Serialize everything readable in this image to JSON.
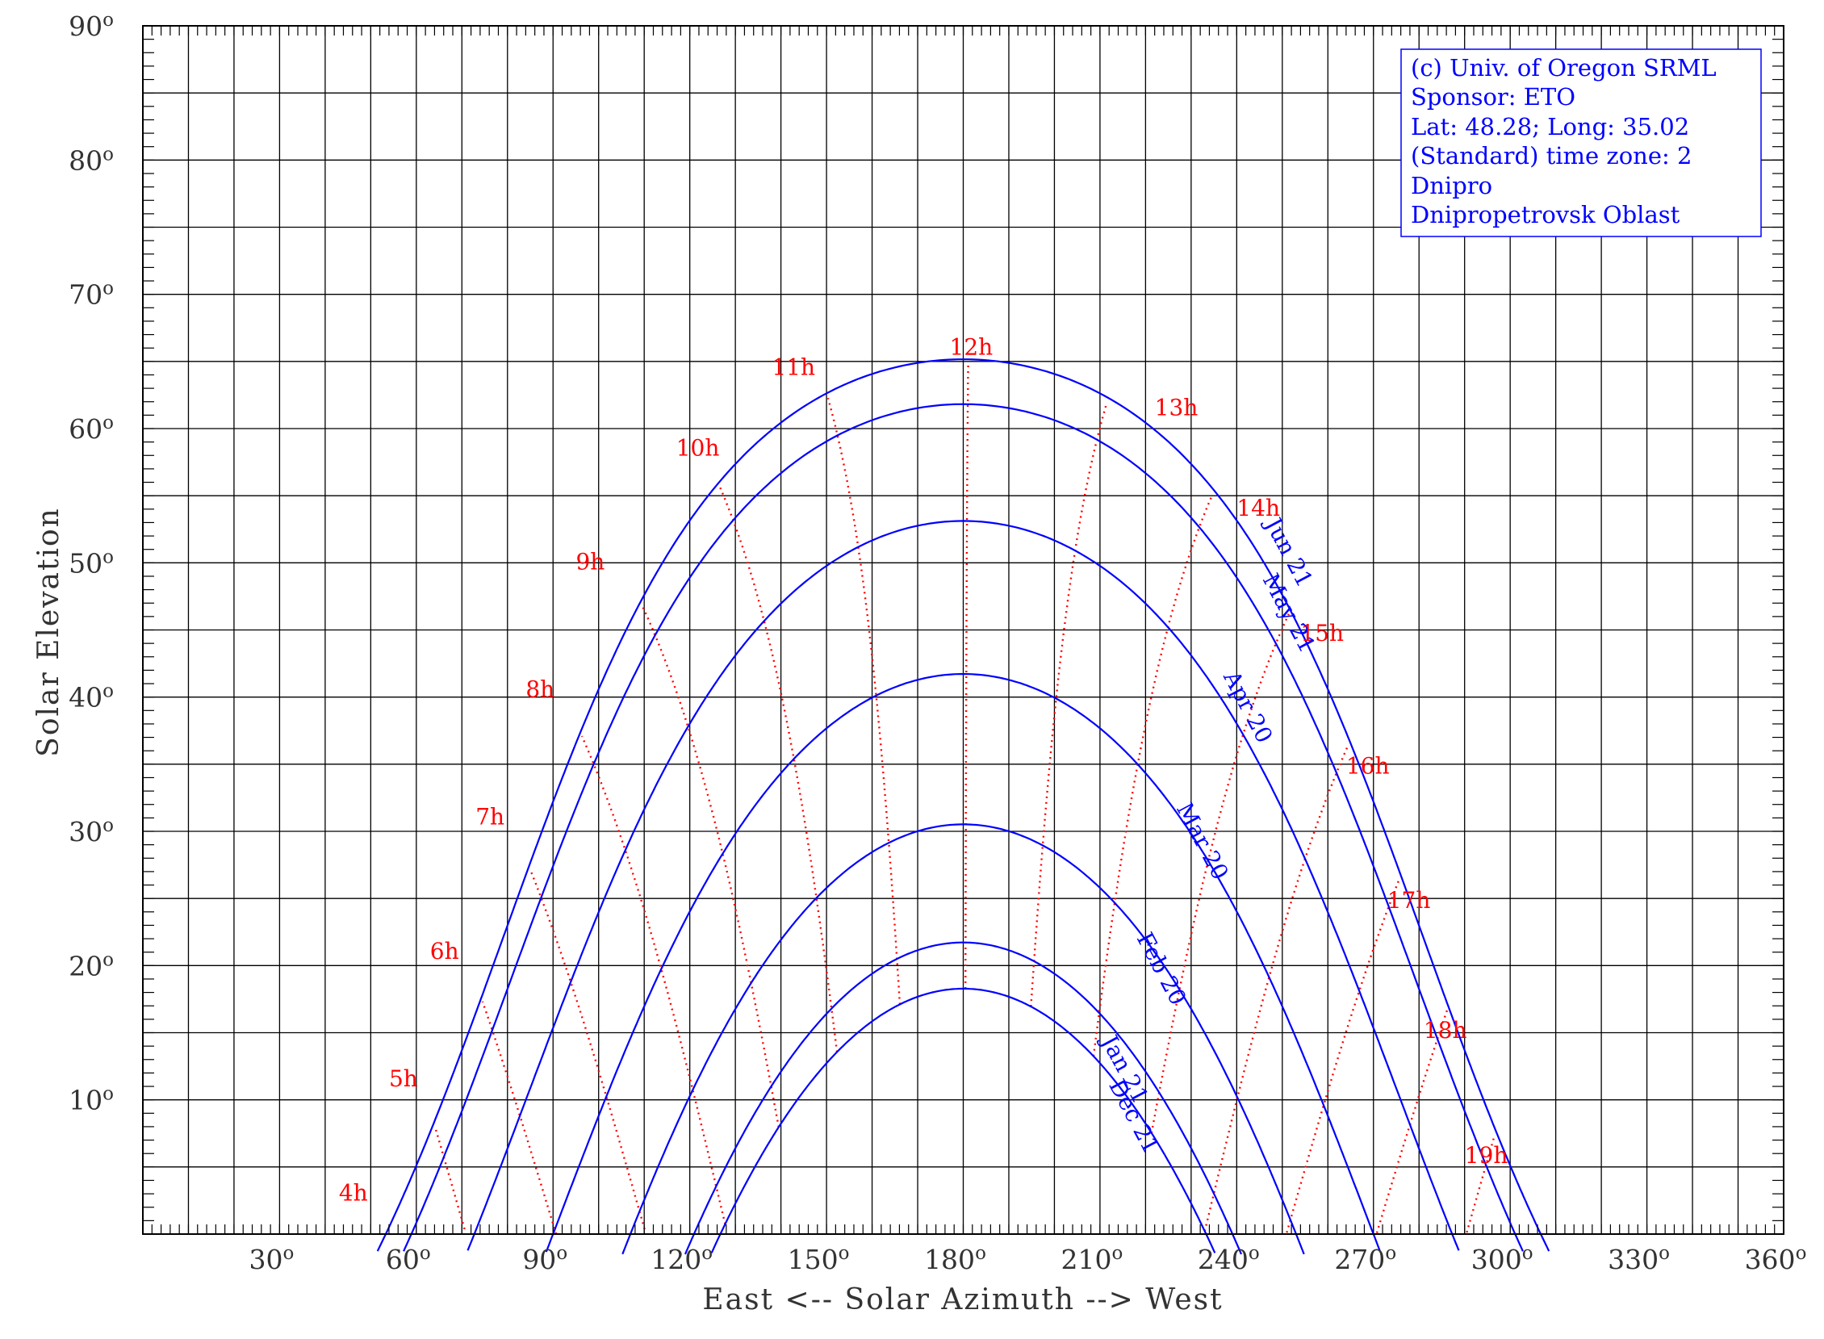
{
  "chart_data": {
    "type": "line",
    "title": "",
    "xlabel": "East <-- Solar Azimuth --> West",
    "ylabel": "Solar Elevation",
    "xlim": [
      0,
      360
    ],
    "ylim": [
      0,
      90
    ],
    "grid": true,
    "x_ticks": [
      {
        "value": 30,
        "label": "30"
      },
      {
        "value": 60,
        "label": "60"
      },
      {
        "value": 90,
        "label": "90"
      },
      {
        "value": 120,
        "label": "120"
      },
      {
        "value": 150,
        "label": "150"
      },
      {
        "value": 180,
        "label": "180"
      },
      {
        "value": 210,
        "label": "210"
      },
      {
        "value": 240,
        "label": "240"
      },
      {
        "value": 270,
        "label": "270"
      },
      {
        "value": 300,
        "label": "300"
      },
      {
        "value": 330,
        "label": "330"
      },
      {
        "value": 360,
        "label": "360"
      }
    ],
    "y_ticks": [
      {
        "value": 10,
        "label": "10"
      },
      {
        "value": 20,
        "label": "20"
      },
      {
        "value": 30,
        "label": "30"
      },
      {
        "value": 40,
        "label": "40"
      },
      {
        "value": 50,
        "label": "50"
      },
      {
        "value": 60,
        "label": "60"
      },
      {
        "value": 70,
        "label": "70"
      },
      {
        "value": 80,
        "label": "80"
      },
      {
        "value": 90,
        "label": "90"
      }
    ],
    "degree_symbol": "o",
    "latitude": 48.28,
    "series": [
      {
        "name": "Jun 21",
        "declination": 23.44,
        "label_az": 250,
        "label_el": 50.5
      },
      {
        "name": "May 21",
        "declination": 20.1,
        "label_az": 250,
        "label_el": 46.0
      },
      {
        "name": "Apr 20",
        "declination": 11.4,
        "label_az": 241,
        "label_el": 39.0
      },
      {
        "name": "Mar 20",
        "declination": 0.0,
        "label_az": 231,
        "label_el": 29.0
      },
      {
        "name": "Feb 20",
        "declination": -11.2,
        "label_az": 222,
        "label_el": 19.5
      },
      {
        "name": "Jan 21",
        "declination": -20.0,
        "label_az": 214,
        "label_el": 12.0
      },
      {
        "name": "Dec 21",
        "declination": -23.44,
        "label_az": 216,
        "label_el": 8.5
      }
    ],
    "hour_lines": [
      {
        "label": "4h",
        "hour": 4,
        "label_az": 43,
        "label_el": 2.5
      },
      {
        "label": "5h",
        "hour": 5,
        "label_az": 54,
        "label_el": 11.0
      },
      {
        "label": "6h",
        "hour": 6,
        "label_az": 63,
        "label_el": 20.5
      },
      {
        "label": "7h",
        "hour": 7,
        "label_az": 73,
        "label_el": 30.5
      },
      {
        "label": "8h",
        "hour": 8,
        "label_az": 84,
        "label_el": 40.0
      },
      {
        "label": "9h",
        "hour": 9,
        "label_az": 95,
        "label_el": 49.5
      },
      {
        "label": "10h",
        "hour": 10,
        "label_az": 117,
        "label_el": 58.0
      },
      {
        "label": "11h",
        "hour": 11,
        "label_az": 138,
        "label_el": 64.0
      },
      {
        "label": "12h",
        "hour": 12,
        "label_az": 177,
        "label_el": 65.5
      },
      {
        "label": "13h",
        "hour": 13,
        "label_az": 222,
        "label_el": 61.0
      },
      {
        "label": "14h",
        "hour": 14,
        "label_az": 240,
        "label_el": 53.5
      },
      {
        "label": "15h",
        "hour": 15,
        "label_az": 254,
        "label_el": 44.2
      },
      {
        "label": "16h",
        "hour": 16,
        "label_az": 264,
        "label_el": 34.3
      },
      {
        "label": "17h",
        "hour": 17,
        "label_az": 273,
        "label_el": 24.3
      },
      {
        "label": "18h",
        "hour": 18,
        "label_az": 281,
        "label_el": 14.6
      },
      {
        "label": "19h",
        "hour": 19,
        "label_az": 290,
        "label_el": 5.3
      }
    ]
  },
  "info_box": {
    "lines": [
      "(c) Univ. of Oregon SRML",
      "Sponsor: ETO",
      "Lat: 48.28; Long: 35.02",
      "(Standard) time zone: 2",
      "Dnipro",
      "Dnipropetrovsk Oblast"
    ]
  },
  "colors": {
    "series": "#0000ff",
    "hour_lines": "#ff0000",
    "grid": "#000000",
    "text": "#333333"
  }
}
